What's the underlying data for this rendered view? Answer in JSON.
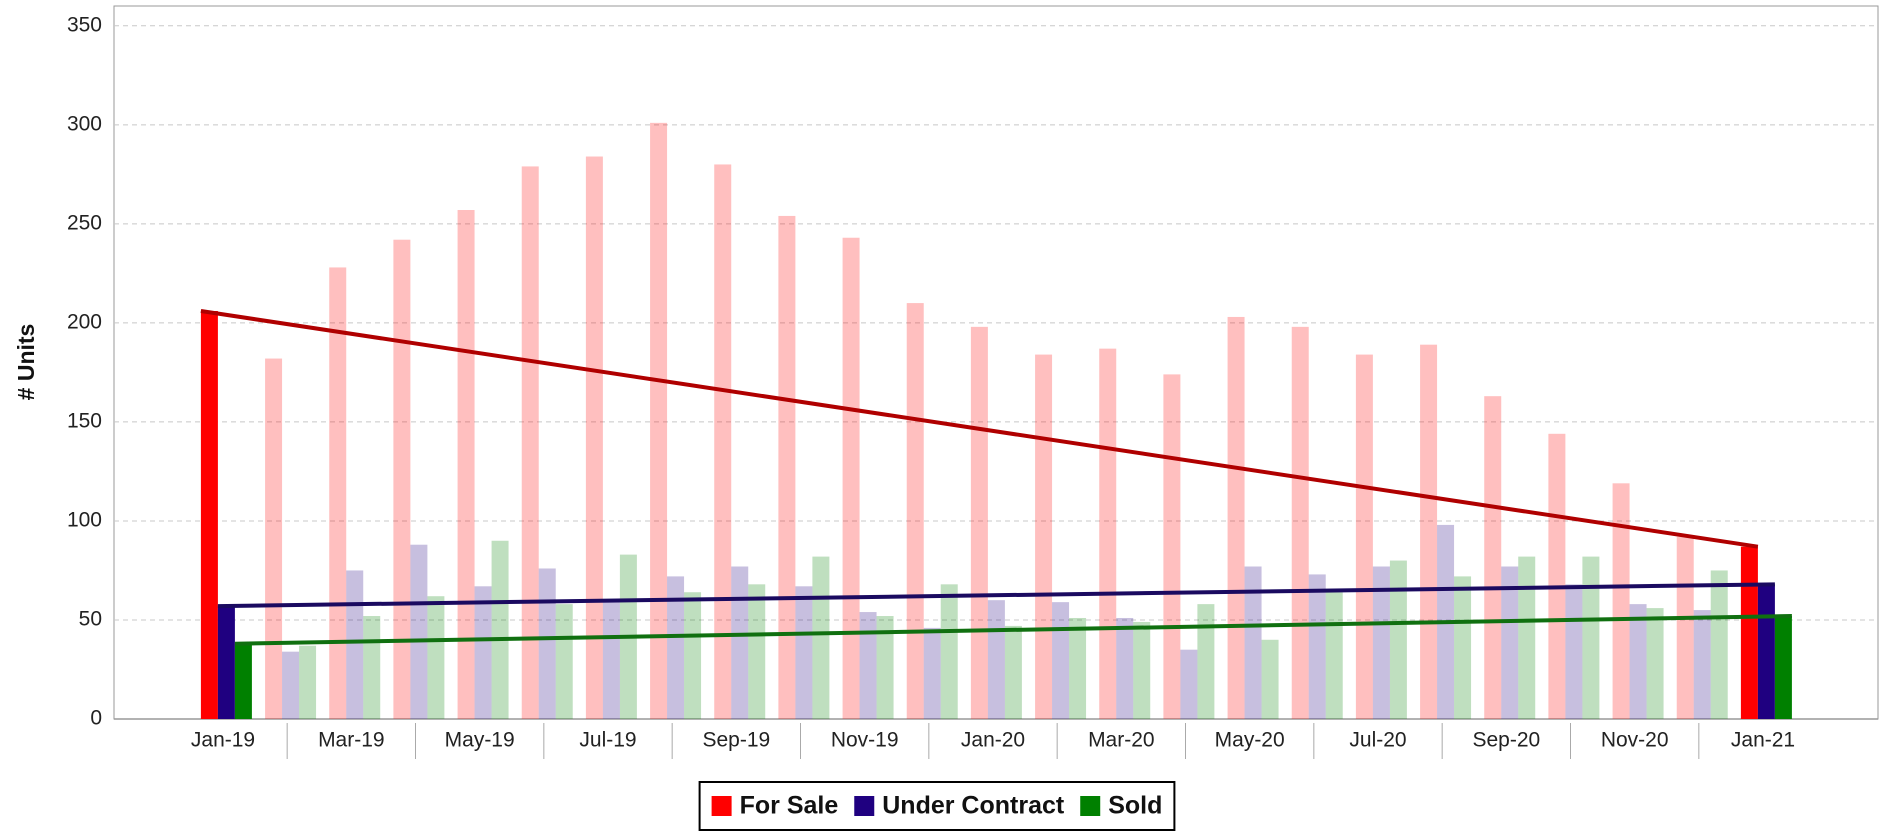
{
  "chart_data": {
    "type": "bar",
    "y_label": "# Units",
    "categories": [
      "Jan-19",
      null,
      "Mar-19",
      null,
      "May-19",
      null,
      "Jul-19",
      null,
      "Sep-19",
      null,
      "Nov-19",
      null,
      "Jan-20",
      null,
      "Mar-20",
      null,
      "May-20",
      null,
      "Jul-20",
      null,
      "Sep-20",
      null,
      "Nov-20",
      null,
      "Jan-21"
    ],
    "series": [
      {
        "name": "For Sale",
        "color": "#ff0000",
        "line_color": "#b00000",
        "values": [
          206,
          182,
          228,
          242,
          257,
          279,
          284,
          301,
          280,
          254,
          243,
          210,
          198,
          184,
          187,
          174,
          203,
          198,
          184,
          189,
          163,
          144,
          119,
          92,
          87
        ]
      },
      {
        "name": "Under Contract",
        "color": "#1f0080",
        "line_color": "#1a0a60",
        "values": [
          57,
          34,
          75,
          88,
          67,
          76,
          60,
          72,
          77,
          67,
          54,
          46,
          60,
          59,
          51,
          35,
          77,
          73,
          77,
          98,
          77,
          68,
          58,
          55,
          68
        ]
      },
      {
        "name": "Sold",
        "color": "#008000",
        "line_color": "#107010",
        "values": [
          38,
          37,
          52,
          62,
          90,
          58,
          83,
          64,
          68,
          82,
          52,
          68,
          47,
          51,
          49,
          58,
          40,
          64,
          80,
          72,
          82,
          82,
          56,
          75,
          52
        ]
      }
    ],
    "ylim": [
      0,
      360
    ],
    "yticks": [
      0,
      50,
      100,
      150,
      200,
      250,
      300,
      350
    ],
    "grid": true
  }
}
